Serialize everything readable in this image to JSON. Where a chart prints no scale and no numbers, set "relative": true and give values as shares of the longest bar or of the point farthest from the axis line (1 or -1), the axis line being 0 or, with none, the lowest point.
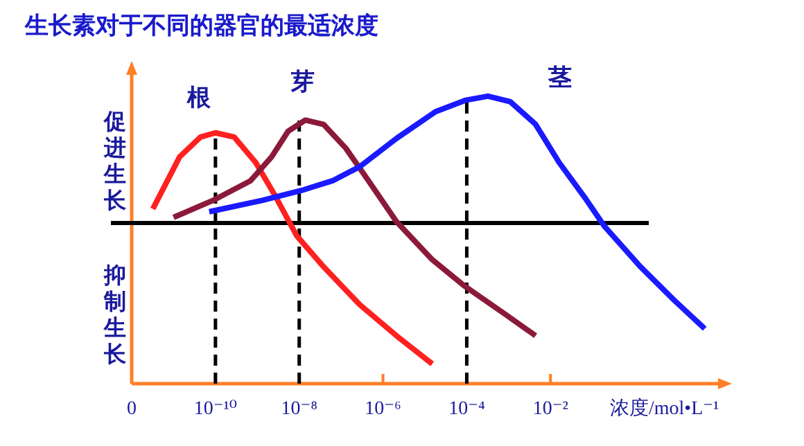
{
  "chart_data": {
    "type": "line",
    "title": "生长素对于不同的器官的最适浓度",
    "xlabel": "浓度/mol•L⁻¹",
    "annotations": [
      "促进生长",
      "抑制生长"
    ],
    "relative": true,
    "log": "x",
    "xlim": [
      1e-12,
      100
    ],
    "xticks": [
      {
        "value": 1e-12,
        "label": "0"
      },
      {
        "value": 1e-10,
        "label": "10⁻¹⁰"
      },
      {
        "value": 1e-08,
        "label": "10⁻⁸"
      },
      {
        "value": 1e-06,
        "label": "10⁻⁶"
      },
      {
        "value": 0.0001,
        "label": "10⁻⁴"
      },
      {
        "value": 0.01,
        "label": "10⁻²"
      }
    ],
    "ref_lines": [
      {
        "axis": "y",
        "value": 0,
        "color": "#000000"
      },
      {
        "axis": "x",
        "value": 1e-10,
        "color": "#000000",
        "line_style": "dashed"
      },
      {
        "axis": "x",
        "value": 1e-08,
        "color": "#000000",
        "line_style": "dashed"
      },
      {
        "axis": "x",
        "value": 0.0001,
        "color": "#000000",
        "line_style": "dashed"
      }
    ],
    "series": [
      {
        "name": "根",
        "color": "#ff2020",
        "x": [
          3.2e-12,
          1.4e-11,
          4.4e-11,
          1e-10,
          2.8e-10,
          9.1e-10,
          2.7e-09,
          8.7e-09,
          3.8e-08,
          2.8e-07,
          2.1e-06,
          1.5e-05
        ],
        "values": [
          0.1,
          0.47,
          0.61,
          0.64,
          0.61,
          0.43,
          0.19,
          -0.09,
          -0.31,
          -0.58,
          -0.8,
          -1.0
        ]
      },
      {
        "name": "芽",
        "color": "#8b1a3a",
        "x": [
          1e-11,
          8.7e-11,
          6.9e-10,
          2.2e-09,
          5.4e-09,
          1.4e-08,
          3.8e-08,
          1.3e-07,
          4.5e-07,
          2.1e-06,
          1.5e-05,
          9.1e-05,
          0.00085,
          0.0044
        ],
        "values": [
          0.04,
          0.16,
          0.3,
          0.47,
          0.65,
          0.73,
          0.7,
          0.53,
          0.3,
          0.01,
          -0.26,
          -0.45,
          -0.65,
          -0.8
        ]
      },
      {
        "name": "茎",
        "color": "#1a1aff",
        "x": [
          7.1e-11,
          1.3e-09,
          1.1e-08,
          6.3e-08,
          2.8e-07,
          2.1e-06,
          1.8e-05,
          9.1e-05,
          0.00032,
          0.0011,
          0.0044,
          0.016,
          0.066,
          0.19,
          1.4,
          9.1,
          48
        ],
        "values": [
          0.08,
          0.16,
          0.23,
          0.3,
          0.4,
          0.6,
          0.79,
          0.87,
          0.9,
          0.86,
          0.7,
          0.43,
          0.18,
          -0.02,
          -0.31,
          -0.55,
          -0.75
        ]
      }
    ]
  }
}
